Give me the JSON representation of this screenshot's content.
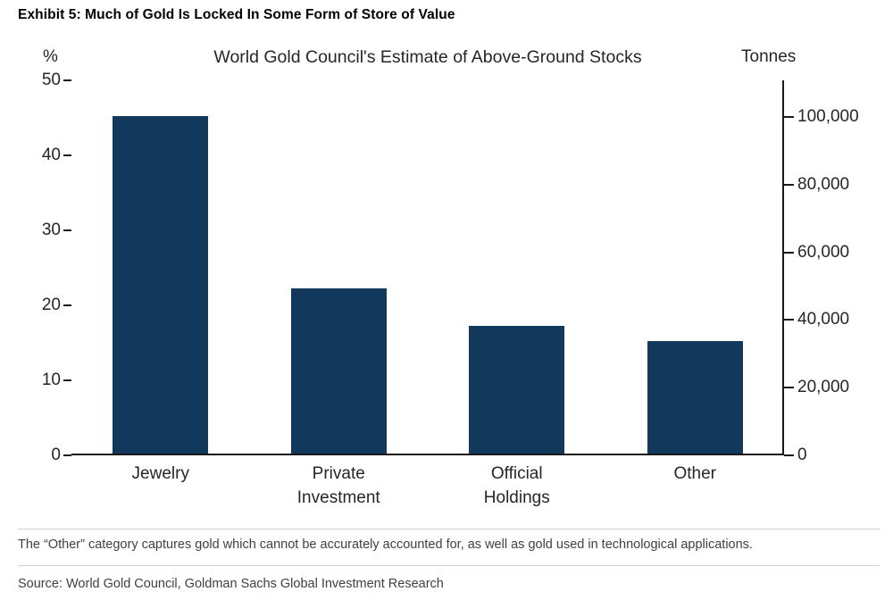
{
  "exhibit_title": "Exhibit 5: Much of Gold Is Locked In Some Form of Store of Value",
  "chart_data": {
    "type": "bar",
    "title": "World Gold Council's Estimate of Above-Ground Stocks",
    "categories": [
      "Jewelry",
      "Private\nInvestment",
      "Official\nHoldings",
      "Other"
    ],
    "values": [
      45,
      22,
      17,
      15
    ],
    "bar_color": "#12395B",
    "left_axis": {
      "label": "%",
      "ticks": [
        0,
        10,
        20,
        30,
        40,
        50
      ],
      "max": 50
    },
    "right_axis": {
      "label": "Tonnes",
      "ticks": [
        0,
        20000,
        40000,
        60000,
        80000,
        100000
      ],
      "tick_labels": [
        "0",
        "20,000",
        "40,000",
        "60,000",
        "80,000",
        "100,000"
      ],
      "max": 110800
    },
    "ylim": [
      0,
      50
    ],
    "grid": false,
    "legend": "none"
  },
  "footnote": "The “Other” category captures gold which cannot be accurately accounted for, as well as gold used in technological applications.",
  "source": "Source: World Gold Council, Goldman Sachs Global Investment Research"
}
